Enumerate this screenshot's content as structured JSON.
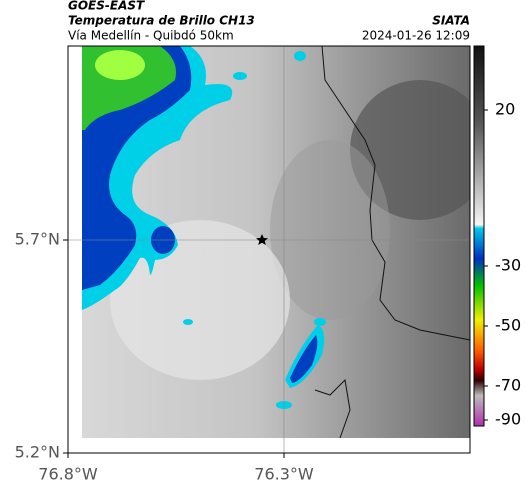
{
  "header": {
    "title": "GOES-EAST",
    "subtitle": "Temperatura de Brillo CH13",
    "source": "SIATA",
    "location": "Vía Medellín - Quibdó 50km",
    "datetime": "2024-01-26 12:09"
  },
  "axes": {
    "y_labels": [
      "5.7°N",
      "5.2°N"
    ],
    "x_labels": [
      "76.8°W",
      "76.3°W"
    ]
  },
  "colorbar": {
    "labels": [
      "20",
      "-30",
      "-50",
      "-70",
      "-90"
    ]
  }
}
